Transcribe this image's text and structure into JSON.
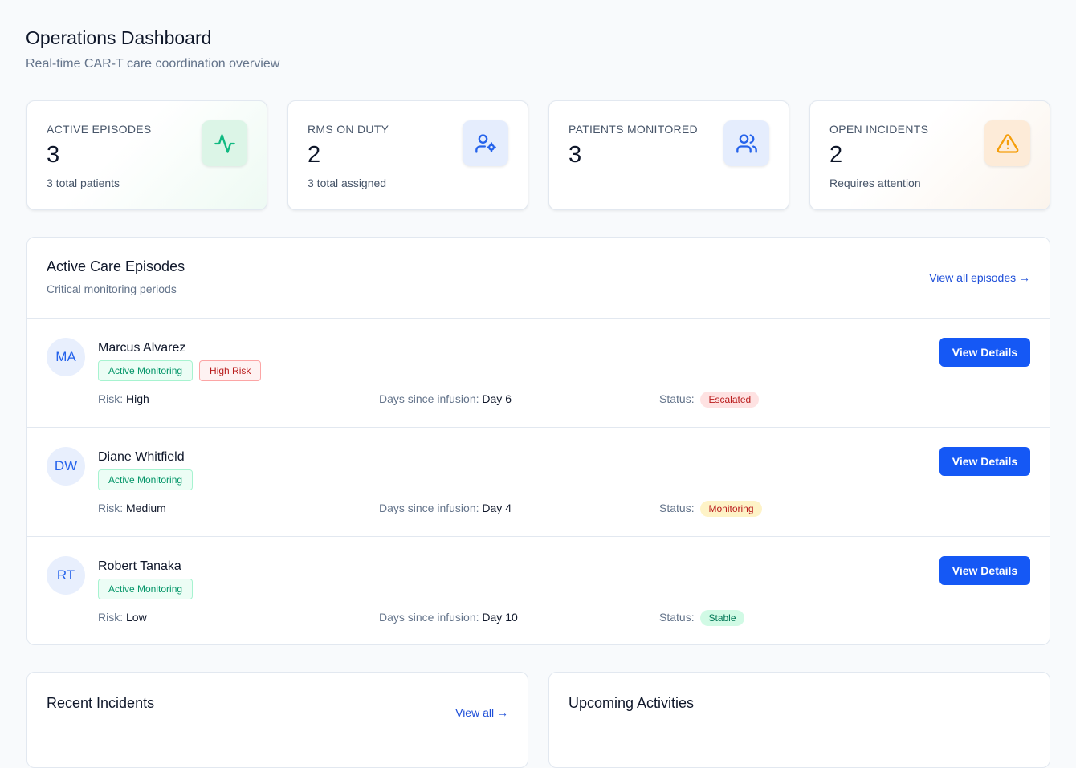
{
  "header": {
    "title": "Operations Dashboard",
    "subtitle": "Real-time CAR-T care coordination overview"
  },
  "stats": [
    {
      "label": "ACTIVE EPISODES",
      "value": 3,
      "note": "3 total patients"
    },
    {
      "label": "RMS ON DUTY",
      "value": 2,
      "note": "3 total assigned"
    },
    {
      "label": "PATIENTS MONITORED",
      "value": 3
    },
    {
      "label": "OPEN INCIDENTS",
      "value": 2,
      "note": "Requires attention"
    }
  ],
  "episodes": {
    "title": "Active Care Episodes",
    "subtitle": "Critical monitoring periods",
    "link": "View all episodes →",
    "rows": [
      {
        "initials": "MA",
        "name": "Marcus Alvarez",
        "tags": [
          "Active Monitoring",
          "High Risk"
        ],
        "risk_label": "Risk:",
        "risk": "High",
        "days_label": "Days since infusion:",
        "days": "Day 6",
        "status_label": "Status:",
        "status": "Escalated",
        "button": "View Details"
      },
      {
        "initials": "DW",
        "name": "Diane Whitfield",
        "tags": [
          "Active Monitoring"
        ],
        "risk_label": "Risk:",
        "risk": "Medium",
        "days_label": "Days since infusion:",
        "days": "Day 4",
        "status_label": "Status:",
        "status": "Monitoring",
        "button": "View Details"
      },
      {
        "initials": "RT",
        "name": "Robert Tanaka",
        "tags": [
          "Active Monitoring"
        ],
        "risk_label": "Risk:",
        "risk": "Low",
        "days_label": "Days since infusion:",
        "days": "Day 10",
        "status_label": "Status:",
        "status": "Stable",
        "button": "View Details"
      }
    ]
  },
  "bottom": [
    {
      "title": "Recent Incidents",
      "link": "View all →"
    },
    {
      "title": "Upcoming Activities"
    }
  ]
}
